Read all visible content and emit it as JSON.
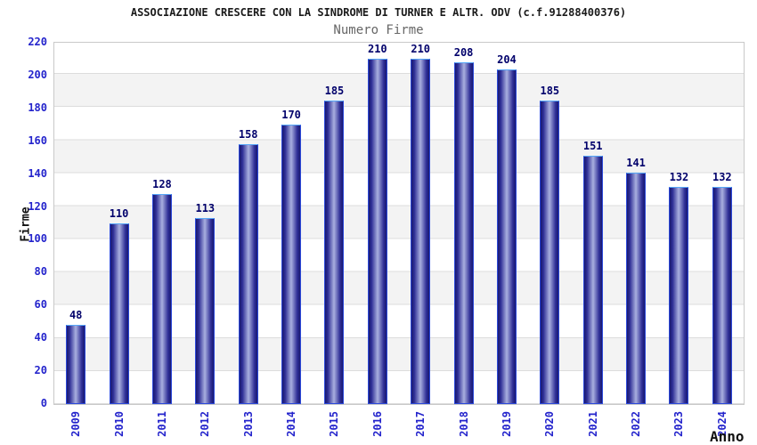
{
  "chart_data": {
    "type": "bar",
    "title": "ASSOCIAZIONE CRESCERE CON LA SINDROME DI TURNER E ALTR. ODV (c.f.91288400376)",
    "subtitle": "Numero Firme",
    "xlabel": "Anno",
    "ylabel": "Firme",
    "categories": [
      "2009",
      "2010",
      "2011",
      "2012",
      "2013",
      "2014",
      "2015",
      "2016",
      "2017",
      "2018",
      "2019",
      "2020",
      "2021",
      "2022",
      "2023",
      "2024"
    ],
    "values": [
      48,
      110,
      128,
      113,
      158,
      170,
      185,
      210,
      210,
      208,
      204,
      185,
      151,
      141,
      132,
      132
    ],
    "ylim": [
      0,
      220
    ],
    "ytick_step": 20,
    "grid": true,
    "legend_position": "none",
    "layout_hints": {
      "bands_alternating": true,
      "x_tick_labels_rotated_vertical": true,
      "value_labels_above_bars": true
    },
    "colors": {
      "axis_label_text": "#2424cc",
      "value_label_text": "#00006b",
      "title_text": "#1a1a1a",
      "subtitle_text": "#666666",
      "plot_border": "#c9c9c9",
      "gridline": "#dcdcdc",
      "band_white": "#ffffff",
      "band_gray": "#f3f3f3",
      "bar_gradient_edge": "#191970",
      "bar_gradient_center": "#a9afdf",
      "bar_outline_side": "#2c49da",
      "bar_outline_top": "#56a7f8"
    }
  }
}
